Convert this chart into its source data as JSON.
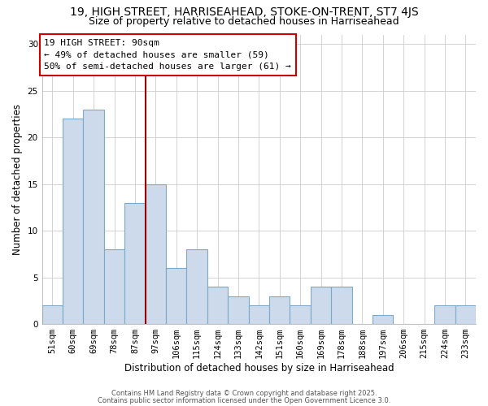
{
  "title1": "19, HIGH STREET, HARRISEAHEAD, STOKE-ON-TRENT, ST7 4JS",
  "title2": "Size of property relative to detached houses in Harriseahead",
  "xlabel": "Distribution of detached houses by size in Harriseahead",
  "ylabel": "Number of detached properties",
  "categories": [
    "51sqm",
    "60sqm",
    "69sqm",
    "78sqm",
    "87sqm",
    "97sqm",
    "106sqm",
    "115sqm",
    "124sqm",
    "133sqm",
    "142sqm",
    "151sqm",
    "160sqm",
    "169sqm",
    "178sqm",
    "188sqm",
    "197sqm",
    "206sqm",
    "215sqm",
    "224sqm",
    "233sqm"
  ],
  "values": [
    2,
    22,
    23,
    8,
    13,
    15,
    6,
    8,
    4,
    3,
    2,
    3,
    2,
    4,
    4,
    0,
    1,
    0,
    0,
    2,
    2
  ],
  "bar_color": "#ccdaeb",
  "bar_edge_color": "#7aaac8",
  "bar_width": 1.0,
  "vline_x": 4.5,
  "vline_color": "#990000",
  "ylim": [
    0,
    31
  ],
  "yticks": [
    0,
    5,
    10,
    15,
    20,
    25,
    30
  ],
  "annotation_title": "19 HIGH STREET: 90sqm",
  "annotation_line1": "← 49% of detached houses are smaller (59)",
  "annotation_line2": "50% of semi-detached houses are larger (61) →",
  "annotation_box_color": "#ffffff",
  "annotation_box_edge": "#cc0000",
  "footer_line1": "Contains HM Land Registry data © Crown copyright and database right 2025.",
  "footer_line2": "Contains public sector information licensed under the Open Government Licence 3.0.",
  "title_fontsize": 10,
  "subtitle_fontsize": 9,
  "tick_fontsize": 7.5,
  "label_fontsize": 8.5,
  "annot_fontsize": 8,
  "footer_fontsize": 6
}
